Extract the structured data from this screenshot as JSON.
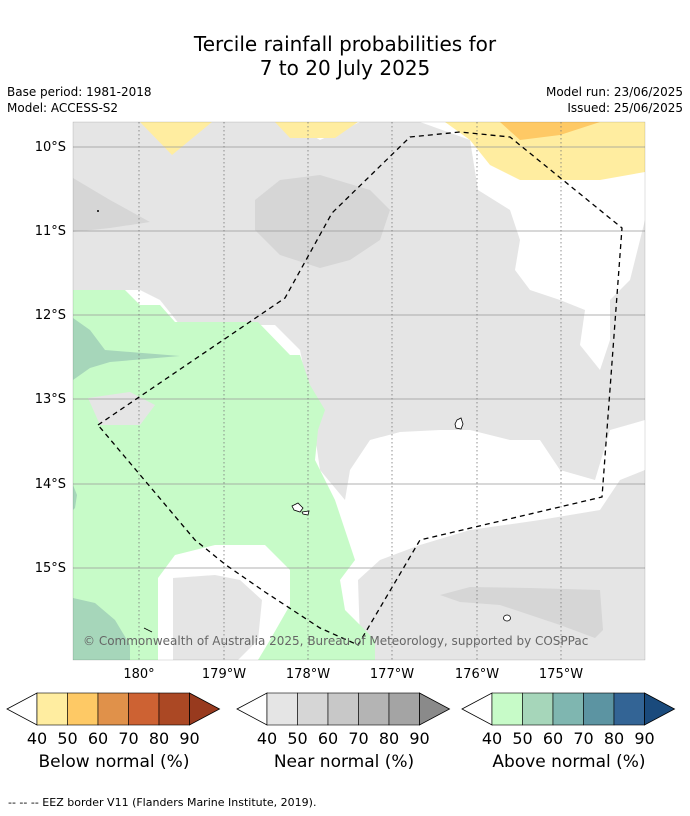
{
  "title": {
    "line1": "Tercile rainfall probabilities for",
    "line2": "7 to 20 July 2025"
  },
  "meta": {
    "base_period": "Base period: 1981-2018",
    "model": "Model: ACCESS-S2",
    "model_run": "Model run: 23/06/2025",
    "issued": "Issued: 25/06/2025"
  },
  "map": {
    "lat_labels": [
      "10°S",
      "11°S",
      "12°S",
      "13°S",
      "14°S",
      "15°S"
    ],
    "lon_labels": [
      "180°",
      "179°W",
      "178°W",
      "177°W",
      "176°W",
      "175°W"
    ],
    "copyright": "© Commonwealth of Australia 2025, Bureau of Meteorology, supported by COSPPac",
    "colors": {
      "below": [
        "#ffeda0",
        "#fec965",
        "#e0914a",
        "#cd6233",
        "#ab4824",
        "#983a1e"
      ],
      "near": [
        "#e5e5e5",
        "#d6d6d6",
        "#c8c8c8",
        "#b4b4b4",
        "#a4a4a4",
        "#8a8a8a"
      ],
      "above": [
        "#c7fbc8",
        "#a6d6ba",
        "#7fb6b0",
        "#5c94a2",
        "#336495",
        "#1a4a7c"
      ]
    }
  },
  "colorbars": {
    "ticks": [
      "40",
      "50",
      "60",
      "70",
      "80",
      "90"
    ],
    "below_label": "Below normal (%)",
    "near_label": "Near normal (%)",
    "above_label": "Above normal (%)"
  },
  "footer": "-- -- -- EEZ border V11 (Flanders Marine Institute, 2019)."
}
